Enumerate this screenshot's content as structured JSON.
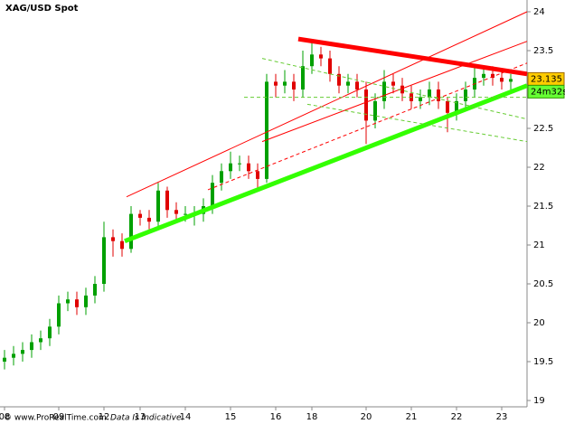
{
  "chart_data": {
    "type": "candlestick",
    "title": "XAG/USD Spot",
    "categories": [
      "08",
      null,
      null,
      null,
      null,
      null,
      "09",
      null,
      null,
      null,
      null,
      "12",
      null,
      null,
      null,
      "13",
      null,
      null,
      null,
      null,
      "14",
      null,
      null,
      null,
      null,
      "15",
      null,
      null,
      null,
      null,
      "16",
      null,
      null,
      null,
      "18",
      null,
      null,
      null,
      null,
      null,
      "20",
      null,
      null,
      null,
      null,
      "21",
      null,
      null,
      null,
      null,
      "22",
      null,
      null,
      null,
      null,
      "23",
      null
    ],
    "open": [
      19.5,
      19.55,
      19.6,
      19.65,
      19.75,
      19.8,
      19.95,
      20.25,
      20.3,
      20.2,
      20.35,
      20.5,
      21.1,
      21.05,
      20.95,
      21.4,
      21.35,
      21.3,
      21.7,
      21.45,
      21.4,
      21.4,
      21.4,
      21.5,
      21.8,
      21.95,
      22.05,
      22.05,
      21.95,
      21.85,
      23.1,
      23.05,
      23.1,
      23.0,
      23.3,
      23.45,
      23.4,
      23.2,
      23.05,
      23.1,
      23.0,
      22.6,
      22.85,
      23.1,
      23.05,
      22.95,
      22.85,
      22.9,
      23.0,
      22.85,
      22.7,
      22.85,
      23.0,
      23.15,
      23.2,
      23.15,
      23.1
    ],
    "high": [
      19.65,
      19.7,
      19.75,
      19.85,
      19.9,
      20.05,
      20.35,
      20.4,
      20.4,
      20.45,
      20.6,
      21.3,
      21.2,
      21.15,
      21.5,
      21.45,
      21.45,
      21.8,
      21.75,
      21.55,
      21.5,
      21.5,
      21.6,
      21.9,
      22.05,
      22.2,
      22.15,
      22.15,
      22.05,
      23.2,
      23.2,
      23.25,
      23.2,
      23.5,
      23.65,
      23.55,
      23.5,
      23.3,
      23.2,
      23.2,
      23.1,
      22.95,
      23.25,
      23.2,
      23.15,
      23.05,
      23.0,
      23.1,
      23.1,
      22.9,
      22.95,
      23.1,
      23.3,
      23.3,
      23.3,
      23.25,
      23.2
    ],
    "low": [
      19.4,
      19.45,
      19.5,
      19.55,
      19.65,
      19.7,
      19.85,
      20.15,
      20.1,
      20.1,
      20.25,
      20.4,
      20.85,
      20.85,
      20.9,
      21.25,
      21.2,
      21.2,
      21.35,
      21.3,
      21.3,
      21.25,
      21.3,
      21.4,
      21.7,
      21.85,
      21.95,
      21.85,
      21.7,
      21.8,
      22.9,
      22.95,
      22.85,
      22.9,
      23.2,
      23.3,
      23.1,
      22.95,
      22.95,
      22.9,
      22.3,
      22.5,
      22.75,
      22.95,
      22.85,
      22.75,
      22.75,
      22.8,
      22.75,
      22.45,
      22.6,
      22.75,
      22.9,
      23.05,
      23.05,
      23.0,
      23.0
    ],
    "close": [
      19.55,
      19.6,
      19.65,
      19.75,
      19.8,
      19.95,
      20.25,
      20.3,
      20.2,
      20.35,
      20.5,
      21.1,
      21.05,
      20.95,
      21.4,
      21.35,
      21.3,
      21.7,
      21.45,
      21.4,
      21.4,
      21.4,
      21.5,
      21.8,
      21.95,
      22.05,
      22.05,
      21.95,
      21.85,
      23.1,
      23.05,
      23.1,
      23.0,
      23.3,
      23.45,
      23.4,
      23.2,
      23.05,
      23.1,
      23.0,
      22.6,
      22.85,
      23.1,
      23.05,
      22.95,
      22.85,
      22.9,
      23.0,
      22.85,
      22.7,
      22.85,
      23.0,
      23.15,
      23.2,
      23.15,
      23.1,
      23.135
    ],
    "up_color": "#00a000",
    "down_color": "#e00000",
    "ylim": [
      19,
      24
    ],
    "yticks": [
      19,
      19.5,
      20,
      20.5,
      21,
      21.5,
      22,
      22.5,
      23,
      23.5,
      24
    ],
    "last_price": 23.135,
    "countdown": "24m32s",
    "trendlines": [
      {
        "color": "#ff0000",
        "width": 5,
        "dash": false,
        "x": [
          32.5,
          57.8
        ],
        "y": [
          23.65,
          23.2
        ]
      },
      {
        "color": "#33ff00",
        "width": 5,
        "dash": false,
        "x": [
          13.3,
          57.8
        ],
        "y": [
          21.05,
          23.05
        ]
      },
      {
        "color": "#ff0000",
        "width": 1,
        "dash": false,
        "x": [
          13.5,
          57.8
        ],
        "y": [
          21.62,
          24.0
        ]
      },
      {
        "color": "#ff0000",
        "width": 1,
        "dash": false,
        "x": [
          28.5,
          57.8
        ],
        "y": [
          22.33,
          23.62
        ]
      },
      {
        "color": "#ff0000",
        "width": 1,
        "dash": true,
        "x": [
          22.5,
          57.8
        ],
        "y": [
          21.71,
          23.34
        ]
      },
      {
        "color": "#66cc33",
        "width": 1,
        "dash": true,
        "x": [
          28.5,
          57.8
        ],
        "y": [
          23.4,
          22.62
        ]
      },
      {
        "color": "#66cc33",
        "width": 1,
        "dash": true,
        "x": [
          26.5,
          57.8
        ],
        "y": [
          22.9,
          22.9
        ]
      },
      {
        "color": "#66cc33",
        "width": 1,
        "dash": true,
        "x": [
          33.5,
          57.8
        ],
        "y": [
          22.81,
          22.33
        ]
      }
    ],
    "footer": "© www.ProRealTime.com.",
    "footer_note": "Data Is Indicative."
  }
}
